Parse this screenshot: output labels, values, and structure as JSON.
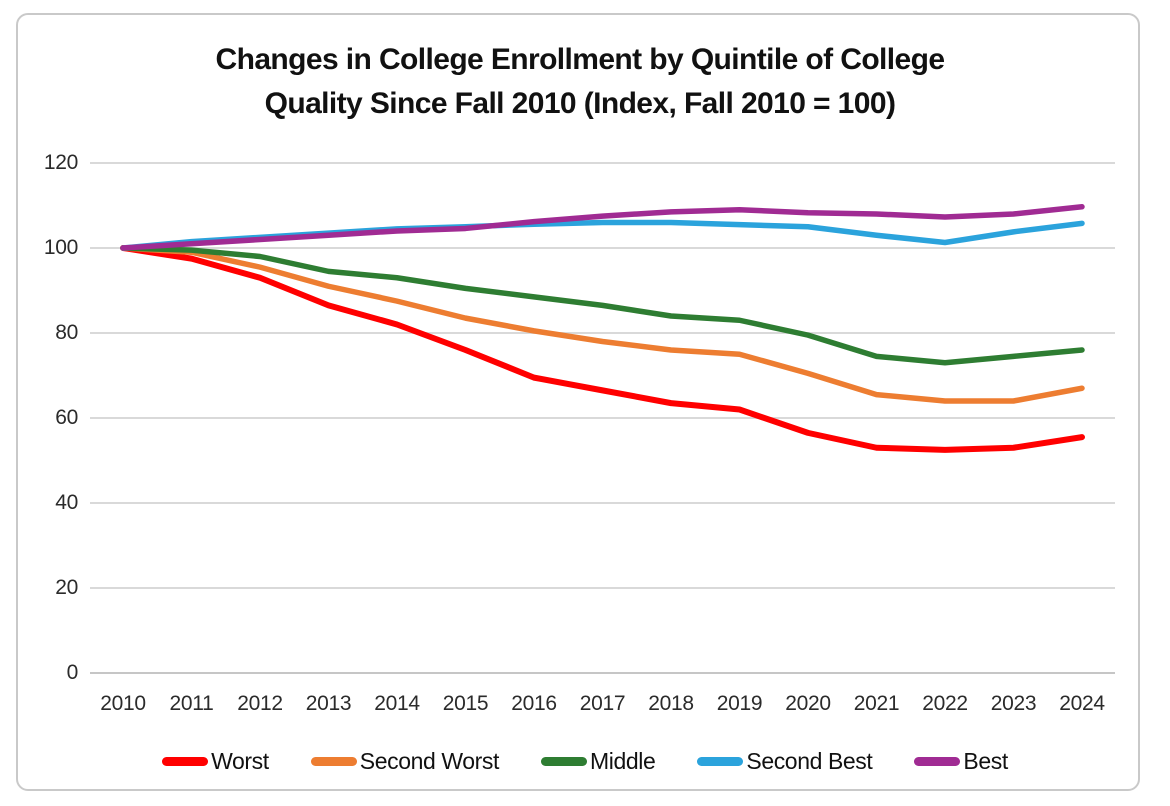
{
  "title": {
    "line1": "Changes in College Enrollment by Quintile of College",
    "line2": "Quality Since Fall 2010 (Index, Fall 2010 = 100)"
  },
  "chart_data": {
    "type": "line",
    "title": "Changes in College Enrollment by Quintile of College Quality Since Fall 2010 (Index, Fall 2010 = 100)",
    "categories": [
      "2010",
      "2011",
      "2012",
      "2013",
      "2014",
      "2015",
      "2016",
      "2017",
      "2018",
      "2019",
      "2020",
      "2021",
      "2022",
      "2023",
      "2024"
    ],
    "series": [
      {
        "name": "Worst",
        "color": "#FF0000",
        "values": [
          100,
          97.5,
          93,
          86.5,
          82,
          76,
          69.5,
          66.5,
          63.5,
          62,
          56.5,
          53,
          52.5,
          53,
          55.5
        ]
      },
      {
        "name": "Second Worst",
        "color": "#ED7D31",
        "values": [
          100,
          99,
          95.5,
          91,
          87.5,
          83.5,
          80.5,
          78,
          76,
          75,
          70.5,
          65.5,
          64,
          64,
          67
        ]
      },
      {
        "name": "Middle",
        "color": "#2E7D32",
        "values": [
          100,
          99.5,
          98,
          94.5,
          93,
          90.5,
          88.5,
          86.5,
          84,
          83,
          79.5,
          74.5,
          73,
          74.5,
          76
        ]
      },
      {
        "name": "Second Best",
        "color": "#2BA3DC",
        "values": [
          100,
          101.5,
          102.5,
          103.5,
          104.5,
          105,
          105.6,
          106,
          106,
          105.5,
          105,
          103,
          101.3,
          103.8,
          105.8
        ]
      },
      {
        "name": "Best",
        "color": "#A02B93",
        "values": [
          100,
          101,
          102,
          103,
          104,
          104.6,
          106.2,
          107.5,
          108.5,
          109,
          108.3,
          108,
          107.3,
          108,
          109.7
        ]
      }
    ],
    "ylim": [
      0,
      120
    ],
    "yticks": [
      0,
      20,
      40,
      60,
      80,
      100,
      120
    ],
    "grid": true,
    "gridline_color": "#d9d9d9",
    "legend_position": "bottom",
    "xlabel": "",
    "ylabel": ""
  }
}
